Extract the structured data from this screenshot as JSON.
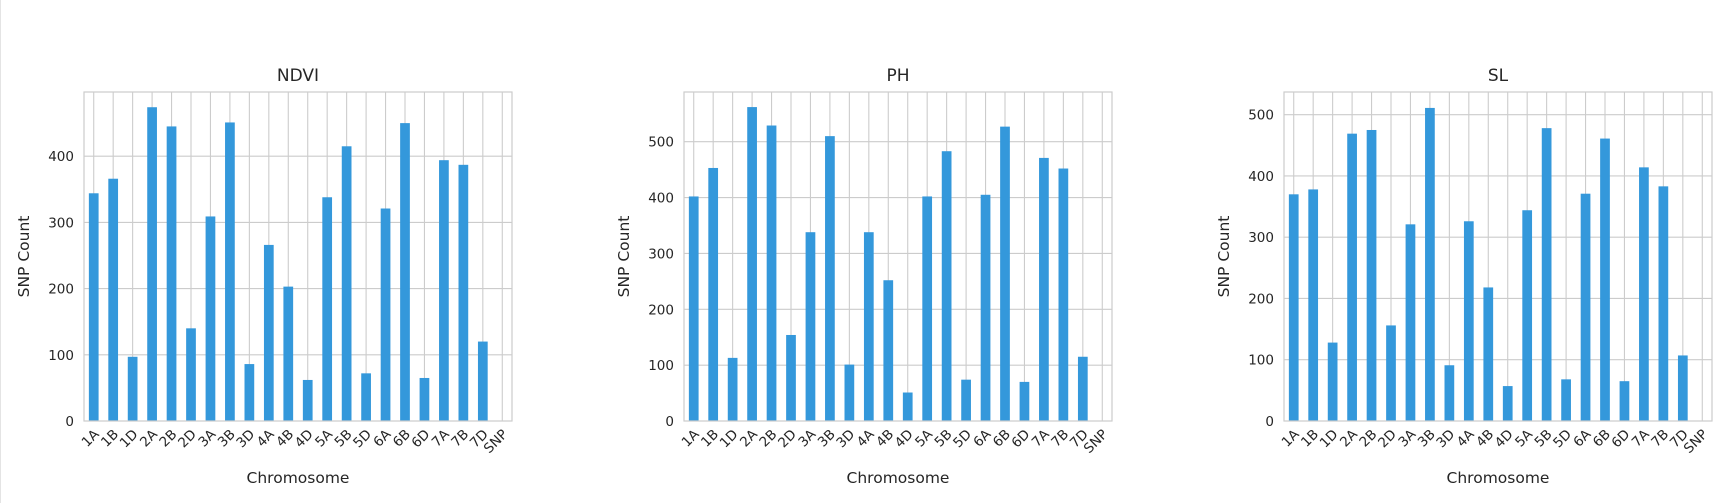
{
  "colors": {
    "bar": "#3498db",
    "grid": "#cccccc",
    "text": "#262626",
    "background": "#ffffff"
  },
  "chart_data": [
    {
      "type": "bar",
      "title": "NDVI",
      "xlabel": "Chromosome",
      "ylabel": "SNP Count",
      "categories": [
        "1A",
        "1B",
        "1D",
        "2A",
        "2B",
        "2D",
        "3A",
        "3B",
        "3D",
        "4A",
        "4B",
        "4D",
        "5A",
        "5B",
        "5D",
        "6A",
        "6B",
        "6D",
        "7A",
        "7B",
        "7D",
        "SNP"
      ],
      "values": [
        344,
        366,
        97,
        474,
        445,
        140,
        309,
        451,
        86,
        266,
        203,
        62,
        338,
        415,
        72,
        321,
        450,
        65,
        394,
        387,
        120,
        null
      ],
      "yticks": [
        0,
        100,
        200,
        300,
        400
      ],
      "ylim": [
        0,
        497
      ],
      "grid": true
    },
    {
      "type": "bar",
      "title": "PH",
      "xlabel": "Chromosome",
      "ylabel": "SNP Count",
      "categories": [
        "1A",
        "1B",
        "1D",
        "2A",
        "2B",
        "2D",
        "3A",
        "3B",
        "3D",
        "4A",
        "4B",
        "4D",
        "5A",
        "5B",
        "5D",
        "6A",
        "6B",
        "6D",
        "7A",
        "7B",
        "7D",
        "SNP"
      ],
      "values": [
        402,
        453,
        113,
        562,
        529,
        154,
        338,
        510,
        101,
        338,
        252,
        51,
        402,
        483,
        74,
        405,
        527,
        70,
        471,
        452,
        115,
        null
      ],
      "yticks": [
        0,
        100,
        200,
        300,
        400,
        500
      ],
      "ylim": [
        0,
        589
      ],
      "grid": true
    },
    {
      "type": "bar",
      "title": "SL",
      "xlabel": "Chromosome",
      "ylabel": "SNP Count",
      "categories": [
        "1A",
        "1B",
        "1D",
        "2A",
        "2B",
        "2D",
        "3A",
        "3B",
        "3D",
        "4A",
        "4B",
        "4D",
        "5A",
        "5B",
        "5D",
        "6A",
        "6B",
        "6D",
        "7A",
        "7B",
        "7D",
        "SNP"
      ],
      "values": [
        370,
        378,
        128,
        469,
        475,
        156,
        321,
        511,
        91,
        326,
        218,
        57,
        344,
        478,
        68,
        371,
        461,
        65,
        414,
        383,
        107,
        null
      ],
      "yticks": [
        0,
        100,
        200,
        300,
        400,
        500
      ],
      "ylim": [
        0,
        537
      ],
      "grid": true
    }
  ]
}
